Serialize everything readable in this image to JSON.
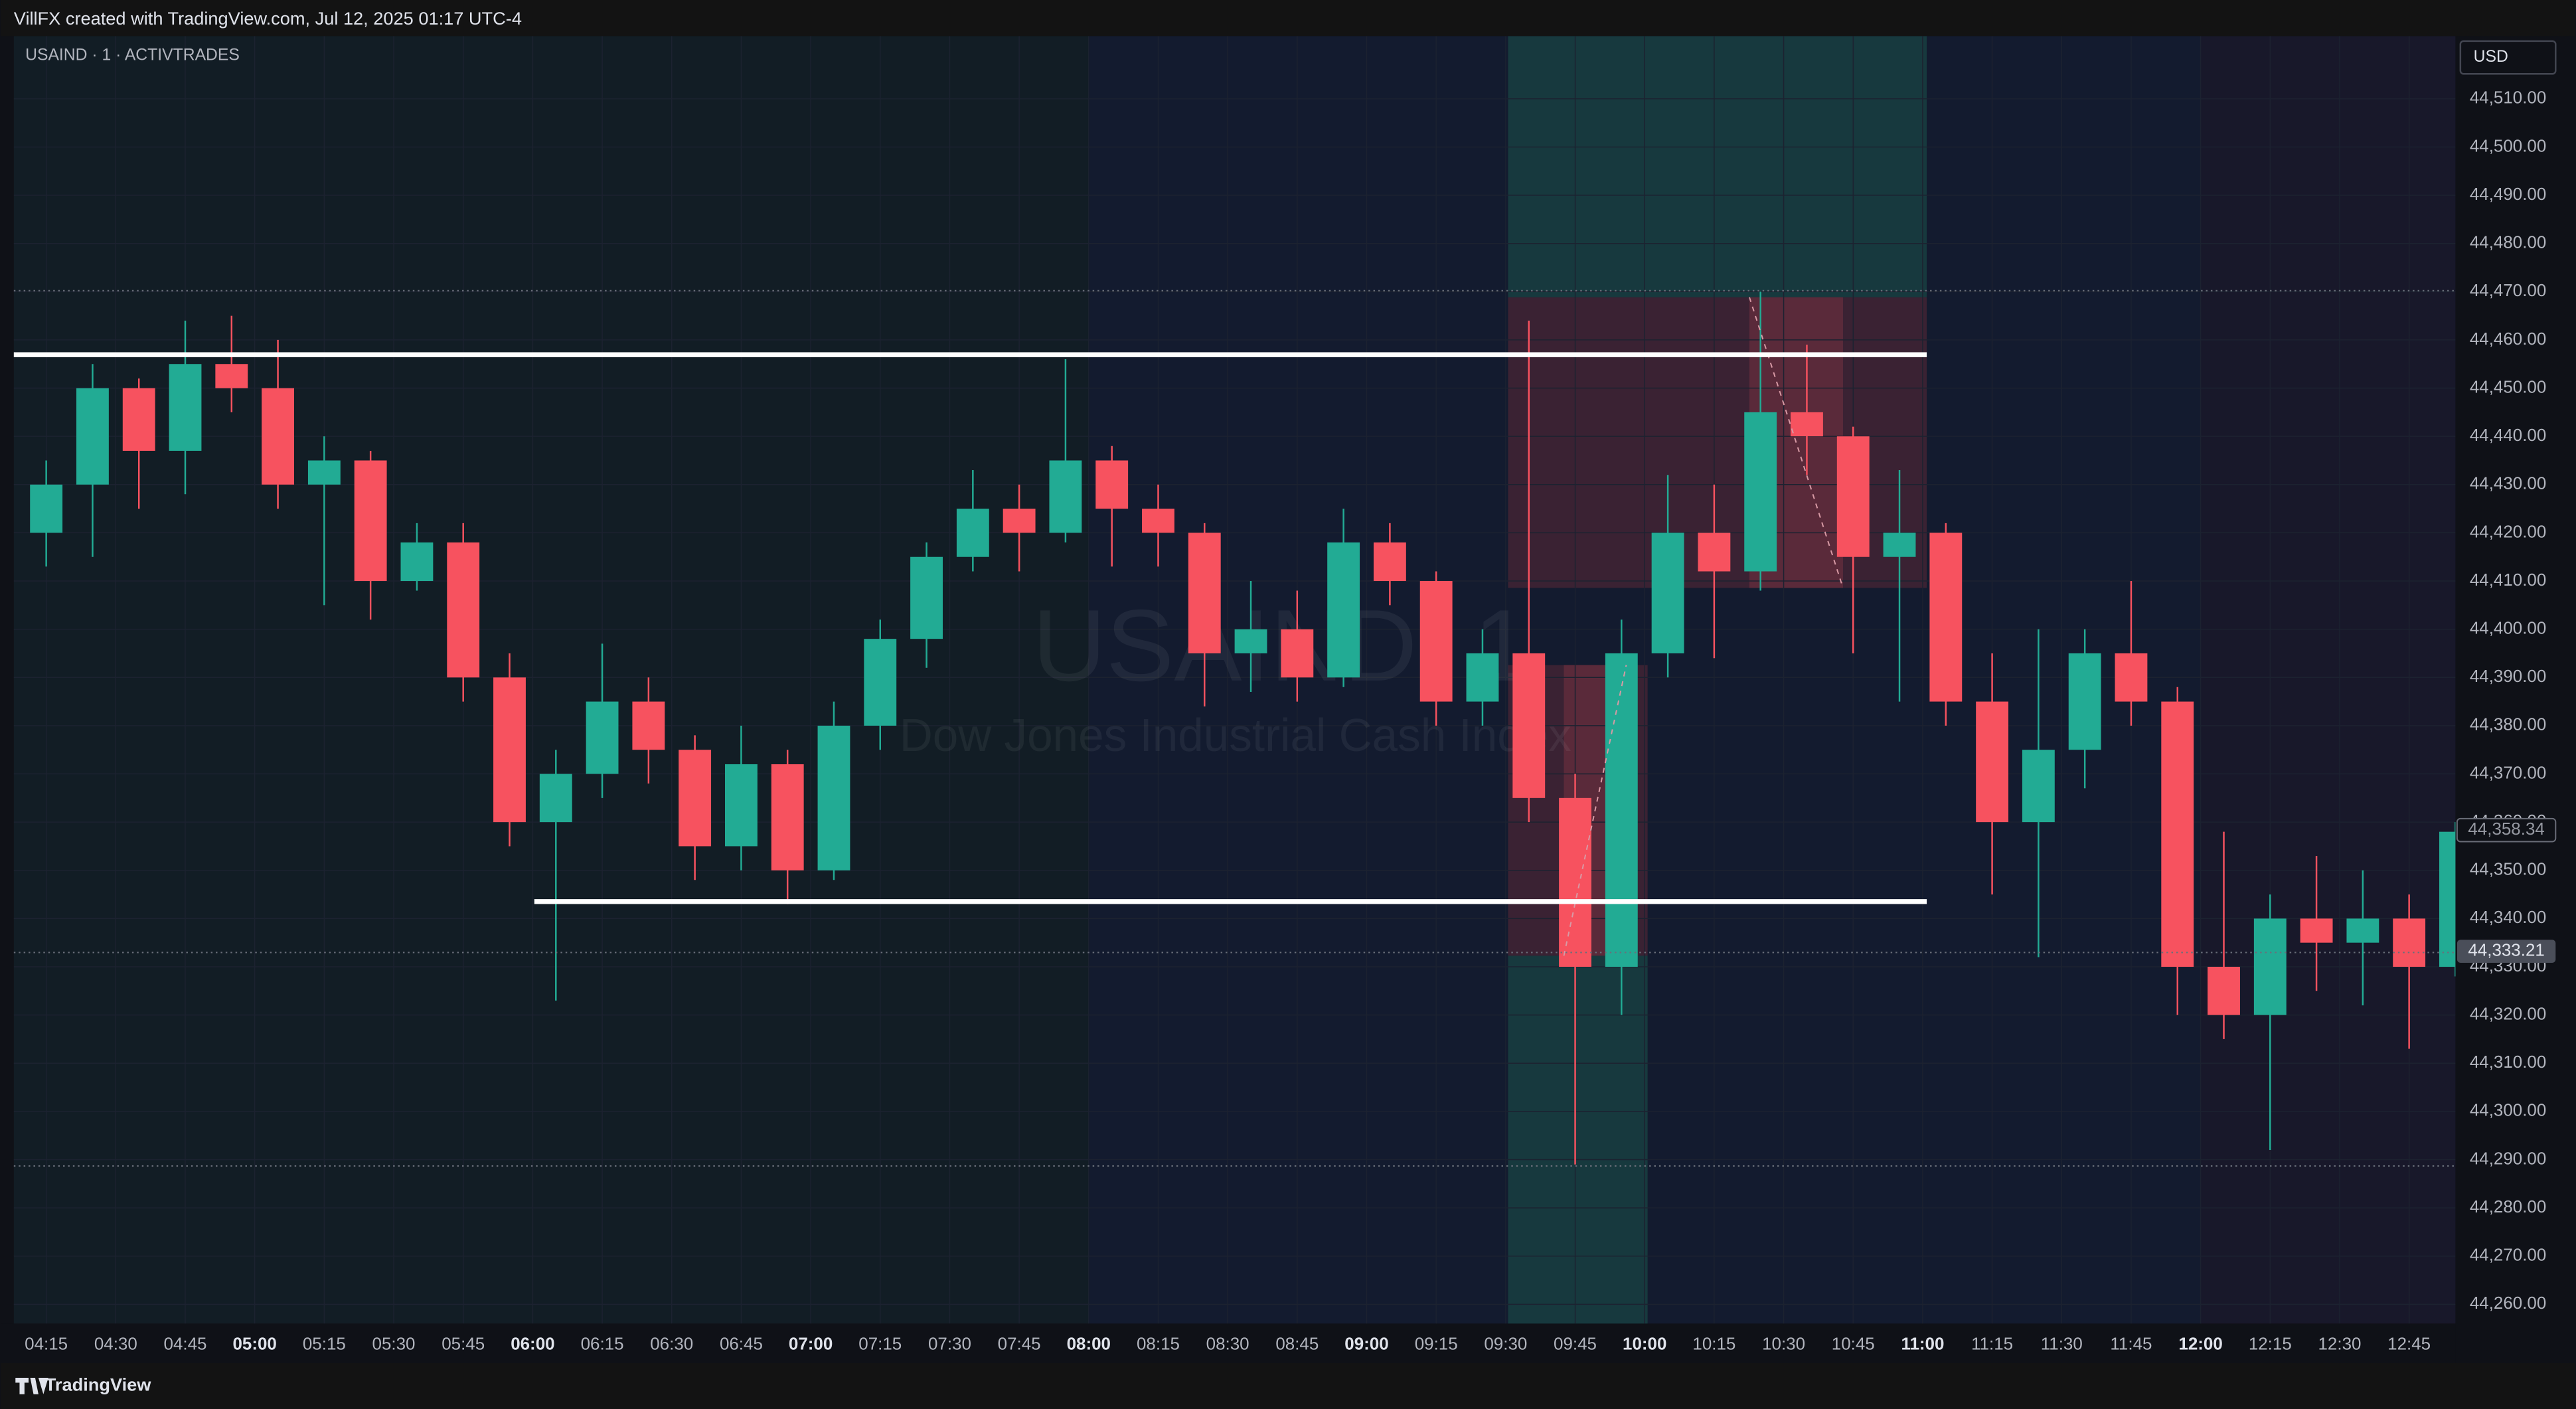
{
  "header": {
    "text": "VillFX created with TradingView.com, Jul 12, 2025 01:17 UTC-4"
  },
  "chart_data": {
    "type": "candlestick",
    "symbol": "USAIND · 1 · ACTIVTRADES",
    "watermark": {
      "symbol": "USAIND, 1",
      "name": "Dow Jones Industrial Cash Index"
    },
    "currency": "USD",
    "x": [
      "04:10",
      "04:20",
      "04:30",
      "04:40",
      "04:50",
      "05:00",
      "05:10",
      "05:20",
      "05:30",
      "05:40",
      "05:50",
      "06:00",
      "06:10",
      "06:20",
      "06:30",
      "06:40",
      "06:50",
      "07:00",
      "07:10",
      "07:20",
      "07:30",
      "07:40",
      "07:50",
      "08:00",
      "08:10",
      "08:20",
      "08:30",
      "08:40",
      "08:50",
      "09:00",
      "09:10",
      "09:20",
      "09:30",
      "09:40",
      "09:50",
      "10:00",
      "10:10",
      "10:20",
      "10:30",
      "10:40",
      "10:50",
      "11:00",
      "11:10",
      "11:20",
      "11:30",
      "11:40",
      "11:50",
      "12:00",
      "12:10",
      "12:20",
      "12:30",
      "12:40",
      "12:50"
    ],
    "open": [
      44420,
      44430,
      44450,
      44437,
      44455,
      44450,
      44430,
      44435,
      44410,
      44418,
      44390,
      44360,
      44370,
      44385,
      44375,
      44355,
      44372,
      44350,
      44380,
      44398,
      44415,
      44425,
      44420,
      44435,
      44425,
      44420,
      44395,
      44400,
      44390,
      44418,
      44410,
      44385,
      44395,
      44365,
      44330,
      44395,
      44420,
      44412,
      44445,
      44440,
      44415,
      44420,
      44385,
      44360,
      44375,
      44395,
      44385,
      44330,
      44320,
      44340,
      44335,
      44340,
      44330
    ],
    "high": [
      44435,
      44455,
      44452,
      44464,
      44465,
      44460,
      44440,
      44437,
      44422,
      44422,
      44395,
      44375,
      44397,
      44390,
      44378,
      44380,
      44375,
      44385,
      44402,
      44418,
      44433,
      44430,
      44456,
      44438,
      44430,
      44422,
      44410,
      44408,
      44425,
      44422,
      44412,
      44400,
      44464,
      44370,
      44402,
      44432,
      44430,
      44470,
      44459,
      44442,
      44433,
      44422,
      44395,
      44400,
      44400,
      44410,
      44388,
      44358,
      44345,
      44353,
      44350,
      44345,
      44360
    ],
    "low": [
      44413,
      44415,
      44425,
      44428,
      44445,
      44425,
      44405,
      44402,
      44408,
      44385,
      44355,
      44323,
      44365,
      44368,
      44348,
      44350,
      44343,
      44348,
      44375,
      44392,
      44412,
      44412,
      44418,
      44413,
      44413,
      44384,
      44387,
      44385,
      44388,
      44405,
      44380,
      44380,
      44360,
      44289,
      44320,
      44390,
      44394,
      44408,
      44432,
      44395,
      44385,
      44380,
      44345,
      44332,
      44367,
      44380,
      44320,
      44315,
      44292,
      44325,
      44322,
      44313,
      44328
    ],
    "close": [
      44430,
      44450,
      44437,
      44455,
      44450,
      44430,
      44435,
      44410,
      44418,
      44390,
      44360,
      44370,
      44385,
      44375,
      44355,
      44372,
      44350,
      44380,
      44398,
      44415,
      44425,
      44420,
      44435,
      44425,
      44420,
      44395,
      44400,
      44390,
      44418,
      44410,
      44385,
      44395,
      44365,
      44330,
      44395,
      44420,
      44412,
      44445,
      44440,
      44415,
      44420,
      44385,
      44360,
      44375,
      44395,
      44385,
      44330,
      44320,
      44340,
      44335,
      44340,
      44330,
      44358
    ],
    "up_color": "#22ab94",
    "down_color": "#f7525f",
    "xlim": [
      "04:08",
      "12:55"
    ],
    "xticks": [
      "04:15",
      "04:30",
      "04:45",
      "05:00",
      "05:15",
      "05:30",
      "05:45",
      "06:00",
      "06:15",
      "06:30",
      "06:45",
      "07:00",
      "07:15",
      "07:30",
      "07:45",
      "08:00",
      "08:15",
      "08:30",
      "08:45",
      "09:00",
      "09:15",
      "09:30",
      "09:45",
      "10:00",
      "10:15",
      "10:30",
      "10:45",
      "11:00",
      "11:15",
      "11:30",
      "11:45",
      "12:00",
      "12:15",
      "12:30",
      "12:45"
    ],
    "ylim": [
      44256,
      44523
    ],
    "yticks": [
      {
        "value": 44260,
        "label": "44,260.00"
      },
      {
        "value": 44270,
        "label": "44,270.00"
      },
      {
        "value": 44280,
        "label": "44,280.00"
      },
      {
        "value": 44290,
        "label": "44,290.00"
      },
      {
        "value": 44300,
        "label": "44,300.00"
      },
      {
        "value": 44310,
        "label": "44,310.00"
      },
      {
        "value": 44320,
        "label": "44,320.00"
      },
      {
        "value": 44330,
        "label": "44,330.00"
      },
      {
        "value": 44340,
        "label": "44,340.00"
      },
      {
        "value": 44350,
        "label": "44,350.00"
      },
      {
        "value": 44360,
        "label": "44,360.00"
      },
      {
        "value": 44370,
        "label": "44,370.00"
      },
      {
        "value": 44380,
        "label": "44,380.00"
      },
      {
        "value": 44390,
        "label": "44,390.00"
      },
      {
        "value": 44400,
        "label": "44,400.00"
      },
      {
        "value": 44410,
        "label": "44,410.00"
      },
      {
        "value": 44420,
        "label": "44,420.00"
      },
      {
        "value": 44430,
        "label": "44,430.00"
      },
      {
        "value": 44440,
        "label": "44,440.00"
      },
      {
        "value": 44450,
        "label": "44,450.00"
      },
      {
        "value": 44460,
        "label": "44,460.00"
      },
      {
        "value": 44470,
        "label": "44,470.00"
      },
      {
        "value": 44480,
        "label": "44,480.00"
      },
      {
        "value": 44490,
        "label": "44,490.00"
      },
      {
        "value": 44500,
        "label": "44,500.00"
      },
      {
        "value": 44510,
        "label": "44,510.00"
      }
    ],
    "price_labels": [
      {
        "value": 44358.34,
        "label": "44,358.34"
      },
      {
        "value": 44333.21,
        "label": "44,333.21"
      }
    ],
    "grid": true
  },
  "footer": {
    "brand": "TradingView"
  }
}
